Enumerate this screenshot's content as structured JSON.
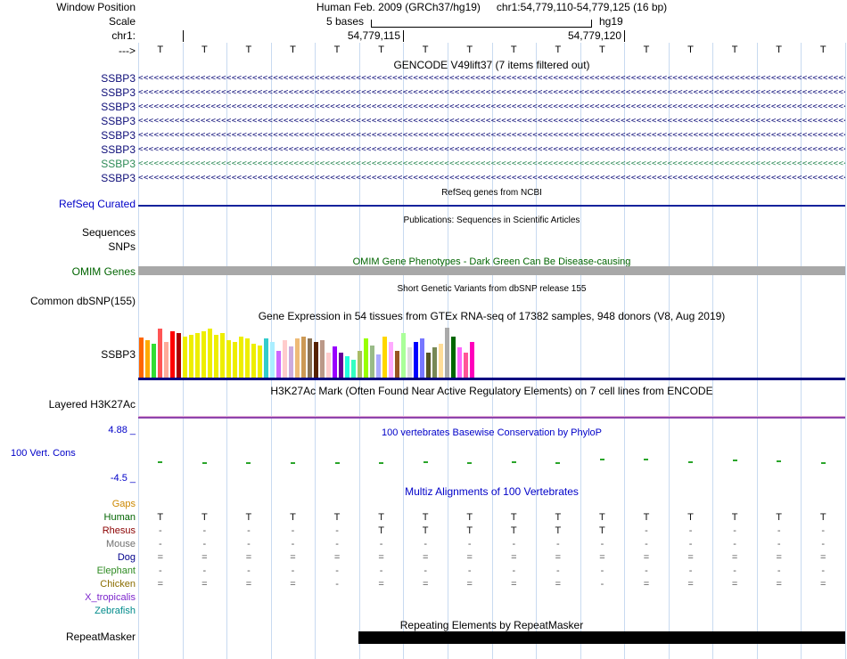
{
  "colors": {
    "guideline": "#c8daf0",
    "gencode_blue": "#0c0c78",
    "gencode_teal": "#2e8b57",
    "track_label_blue": "#0000c8",
    "omim_green": "#006400",
    "omim_bar_gray": "#a8a8a8",
    "refseq_line_blue": "#13229c",
    "gtex_baseline_navy": "#000080",
    "h3k27ac_purple": "#8e44ad",
    "h3k27ac_pink": "#e8b4d8",
    "phylop_green": "#2aa52a",
    "repeat_black": "#000000"
  },
  "header": {
    "window_position_label": "Window Position",
    "assembly_text": "Human Feb. 2009 (GRCh37/hg19)",
    "position_text": "chr1:54,779,110-54,779,125 (16 bp)",
    "scale_label": "Scale",
    "scale_value": "5 bases",
    "scale_assembly": "hg19",
    "chrom_label": "chr1:",
    "tick_left_value": "54,779,115",
    "tick_right_value": "54,779,120",
    "strand_label": "--->"
  },
  "ruler_bases": [
    "T",
    "T",
    "T",
    "T",
    "T",
    "T",
    "T",
    "T",
    "T",
    "T",
    "T",
    "T",
    "T",
    "T",
    "T",
    "T"
  ],
  "gencode": {
    "title": "GENCODE V49lift37 (7 items filtered out)",
    "arrow_symbol": "<",
    "arrow_count": 150,
    "genes": [
      {
        "label": "SSBP3",
        "color": "#0c0c78"
      },
      {
        "label": "SSBP3",
        "color": "#0c0c78"
      },
      {
        "label": "SSBP3",
        "color": "#0c0c78"
      },
      {
        "label": "SSBP3",
        "color": "#0c0c78"
      },
      {
        "label": "SSBP3",
        "color": "#0c0c78"
      },
      {
        "label": "SSBP3",
        "color": "#0c0c78"
      },
      {
        "label": "SSBP3",
        "color": "#2e8b57"
      },
      {
        "label": "SSBP3",
        "color": "#0c0c78"
      }
    ]
  },
  "refseq": {
    "title": "RefSeq genes from NCBI",
    "track_label": "RefSeq Curated"
  },
  "publications": {
    "title": "Publications: Sequences in Scientific Articles",
    "rows": [
      "Sequences",
      "SNPs"
    ]
  },
  "omim": {
    "title": "OMIM Gene Phenotypes - Dark Green Can Be Disease-causing",
    "track_label": "OMIM Genes"
  },
  "dbsnp": {
    "title": "Short Genetic Variants from dbSNP release 155",
    "track_label": "Common dbSNP(155)"
  },
  "gtex": {
    "title": "Gene Expression in 54 tissues from GTEx RNA-seq of 17382 samples, 948 donors (V8, Aug 2019)",
    "track_label": "SSBP3",
    "bar_colors": [
      "#FF6600",
      "#FFAA00",
      "#33DD33",
      "#FF5555",
      "#FFAA99",
      "#FF0000",
      "#AA0000",
      "#EEEE00",
      "#EEEE00",
      "#EEEE00",
      "#EEEE00",
      "#EEEE00",
      "#EEEE00",
      "#EEEE00",
      "#EEEE00",
      "#EEEE00",
      "#EEEE00",
      "#EEEE00",
      "#EEEE00",
      "#EEEE00",
      "#33CCCC",
      "#AAEEFF",
      "#CC66FF",
      "#FFCCCC",
      "#CCAADD",
      "#EEBB77",
      "#CC9955",
      "#8B7355",
      "#552200",
      "#BB9988",
      "#FFCCCC",
      "#9900FF",
      "#660099",
      "#22FFDD",
      "#33FFC2",
      "#AABB66",
      "#99FF00",
      "#99BB88",
      "#AAAAFF",
      "#FFD700",
      "#FFAAFF",
      "#995522",
      "#AAFF99",
      "#DDDDDD",
      "#0000FF",
      "#7777FF",
      "#555522",
      "#778855",
      "#FFDD99",
      "#AAAAAA",
      "#006600",
      "#FF66FF",
      "#FF5599",
      "#FF00BB"
    ],
    "bar_heights": [
      45,
      42,
      38,
      55,
      40,
      52,
      50,
      46,
      48,
      50,
      52,
      55,
      48,
      50,
      42,
      40,
      46,
      44,
      38,
      36,
      44,
      40,
      30,
      42,
      35,
      44,
      46,
      44,
      40,
      42,
      28,
      35,
      28,
      24,
      20,
      30,
      44,
      36,
      26,
      46,
      40,
      30,
      50,
      34,
      40,
      44,
      28,
      34,
      38,
      56,
      46,
      34,
      28,
      40
    ]
  },
  "h3k27ac": {
    "title": "H3K27Ac Mark (Often Found Near Active Regulatory Elements) on 7 cell lines from ENCODE",
    "track_label": "Layered H3K27Ac"
  },
  "conservation": {
    "title": "100 vertebrates Basewise Conservation by PhyloP",
    "track_label": "100 Vert. Cons",
    "max": "4.88 _",
    "min": "-4.5 _",
    "tick_offsets": [
      1,
      0,
      0,
      0,
      0,
      0,
      1,
      0,
      1,
      0,
      4,
      4,
      1,
      3,
      2,
      0
    ]
  },
  "multiz": {
    "title": "Multiz Alignments of 100 Vertebrates",
    "rows": [
      {
        "label": "Gaps",
        "color": "#cc8800",
        "cells": [
          "",
          "",
          "",
          "",
          "",
          "",
          "",
          "",
          "",
          "",
          "",
          "",
          "",
          "",
          "",
          ""
        ]
      },
      {
        "label": "Human",
        "color": "#006400",
        "cells": [
          "T",
          "T",
          "T",
          "T",
          "T",
          "T",
          "T",
          "T",
          "T",
          "T",
          "T",
          "T",
          "T",
          "T",
          "T",
          "T"
        ]
      },
      {
        "label": "Rhesus",
        "color": "#8b0000",
        "cells": [
          "-",
          "-",
          "-",
          "-",
          "-",
          "T",
          "T",
          "T",
          "T",
          "T",
          "T",
          "-",
          "-",
          "-",
          "-",
          "-"
        ]
      },
      {
        "label": "Mouse",
        "color": "#707070",
        "cells": [
          "-",
          "-",
          "-",
          "-",
          "-",
          "-",
          "-",
          "-",
          "-",
          "-",
          "-",
          "-",
          "-",
          "-",
          "-",
          "-"
        ]
      },
      {
        "label": "Dog",
        "color": "#00008b",
        "cells": [
          "=",
          "=",
          "=",
          "=",
          "=",
          "=",
          "=",
          "=",
          "=",
          "=",
          "=",
          "=",
          "=",
          "=",
          "=",
          "="
        ]
      },
      {
        "label": "Elephant",
        "color": "#2e8b22",
        "cells": [
          "-",
          "-",
          "-",
          "-",
          "-",
          "-",
          "-",
          "-",
          "-",
          "-",
          "-",
          "-",
          "-",
          "-",
          "-",
          "-"
        ]
      },
      {
        "label": "Chicken",
        "color": "#8b6d00",
        "cells": [
          "=",
          "=",
          "=",
          "=",
          "-",
          "=",
          "=",
          "=",
          "=",
          "=",
          "-",
          "=",
          "=",
          "=",
          "=",
          "="
        ]
      },
      {
        "label": "X_tropicalis",
        "color": "#7d26cd",
        "cells": [
          "",
          "",
          "",
          "",
          "",
          "",
          "",
          "",
          "",
          "",
          "",
          "",
          "",
          "",
          "",
          ""
        ]
      },
      {
        "label": "Zebrafish",
        "color": "#008b8b",
        "cells": [
          "",
          "",
          "",
          "",
          "",
          "",
          "",
          "",
          "",
          "",
          "",
          "",
          "",
          "",
          "",
          ""
        ]
      }
    ]
  },
  "repeatmasker": {
    "title": "Repeating Elements by RepeatMasker",
    "track_label": "RepeatMasker"
  }
}
